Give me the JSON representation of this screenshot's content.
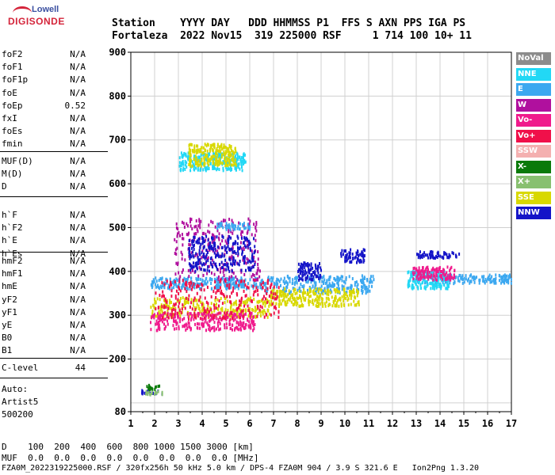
{
  "logo": {
    "top": "Lowell",
    "bottom": "DIGISONDE"
  },
  "header": {
    "line1": "Station    YYYY DAY   DDD HHMMSS P1  FFS S AXN PPS IGA PS",
    "line2": "Fortaleza  2022 Nov15  319 225000 RSF     1 714 100 10+ 11"
  },
  "params_groups": [
    [
      {
        "name": "foF2",
        "value": "N/A"
      },
      {
        "name": "foF1",
        "value": "N/A"
      },
      {
        "name": "foF1p",
        "value": "N/A"
      },
      {
        "name": "foE",
        "value": "N/A"
      },
      {
        "name": "foEp",
        "value": "0.52"
      },
      {
        "name": "fxI",
        "value": "N/A"
      },
      {
        "name": "foEs",
        "value": "N/A"
      },
      {
        "name": "fmin",
        "value": "N/A"
      }
    ],
    [
      {
        "name": "MUF(D)",
        "value": "N/A"
      },
      {
        "name": "M(D)",
        "value": "N/A"
      },
      {
        "name": "D",
        "value": "N/A"
      }
    ],
    [
      {
        "name": "h`F",
        "value": "N/A"
      },
      {
        "name": "h`F2",
        "value": "N/A"
      },
      {
        "name": "h`E",
        "value": "N/A"
      },
      {
        "name": "h`Es",
        "value": "N/A"
      }
    ],
    [
      {
        "name": "hmF2",
        "value": "N/A"
      },
      {
        "name": "hmF1",
        "value": "N/A"
      },
      {
        "name": "hmE",
        "value": "N/A"
      },
      {
        "name": "yF2",
        "value": "N/A"
      },
      {
        "name": "yF1",
        "value": "N/A"
      },
      {
        "name": "yE",
        "value": "N/A"
      },
      {
        "name": "B0",
        "value": "N/A"
      },
      {
        "name": "B1",
        "value": "N/A"
      }
    ],
    [
      {
        "name": "C-level",
        "value": "44"
      }
    ]
  ],
  "auto": {
    "label": "Auto:",
    "program": "Artist5",
    "version": "500200"
  },
  "legend": [
    {
      "label": "NoVal",
      "color": "#8c8c8c"
    },
    {
      "label": "NNE",
      "color": "#22d8f5"
    },
    {
      "label": "E",
      "color": "#3ca8f0"
    },
    {
      "label": "W",
      "color": "#b0109e"
    },
    {
      "label": "Vo-",
      "color": "#f01a8c"
    },
    {
      "label": "Vo+",
      "color": "#f0104a"
    },
    {
      "label": "SSW",
      "color": "#f4b0b0"
    },
    {
      "label": "X-",
      "color": "#0a7a0a"
    },
    {
      "label": "X+",
      "color": "#88c070"
    },
    {
      "label": "SSE",
      "color": "#d8d800"
    },
    {
      "label": "NNW",
      "color": "#1414c8"
    }
  ],
  "footer": {
    "d_row": "D    100  200  400  600  800 1000 1500 3000 [km]",
    "muf_row": "MUF  0.0  0.0  0.0  0.0  0.0  0.0  0.0  0.0 [MHz]",
    "file_row": "FZA0M_2022319225000.RSF / 320fx256h 50 kHz 5.0 km / DPS-4 FZA0M 904 / 3.9 S 321.6 E   Ion2Png 1.3.20"
  },
  "chart_data": {
    "type": "scatter",
    "title": "",
    "xlabel": "",
    "ylabel": "",
    "xlim": [
      1,
      17
    ],
    "ylim": [
      80,
      900
    ],
    "x_ticks": [
      1,
      2,
      3,
      4,
      5,
      6,
      7,
      8,
      9,
      10,
      11,
      12,
      13,
      14,
      15,
      16,
      17
    ],
    "y_ticks": [
      80,
      200,
      300,
      400,
      500,
      600,
      700,
      800,
      900
    ],
    "grid": true,
    "legend_position": "right",
    "clusters": [
      {
        "series": "E",
        "x_range": [
          1.8,
          6.6
        ],
        "y_range": [
          360,
          385
        ]
      },
      {
        "series": "E",
        "x_range": [
          6.6,
          11.2
        ],
        "y_range": [
          350,
          390
        ]
      },
      {
        "series": "SSE",
        "x_range": [
          1.8,
          6.8
        ],
        "y_range": [
          295,
          340
        ]
      },
      {
        "series": "SSE",
        "x_range": [
          6.8,
          10.6
        ],
        "y_range": [
          320,
          360
        ]
      },
      {
        "series": "Vo-",
        "x_range": [
          1.8,
          6.2
        ],
        "y_range": [
          265,
          305
        ]
      },
      {
        "series": "W",
        "x_range": [
          2.8,
          6.4
        ],
        "y_range": [
          380,
          520
        ]
      },
      {
        "series": "Vo+",
        "x_range": [
          2.0,
          7.2
        ],
        "y_range": [
          290,
          380
        ]
      },
      {
        "series": "NNW",
        "x_range": [
          3.4,
          6.2
        ],
        "y_range": [
          400,
          480
        ]
      },
      {
        "series": "NNW",
        "x_range": [
          9.8,
          10.8
        ],
        "y_range": [
          420,
          450
        ]
      },
      {
        "series": "NNW",
        "x_range": [
          8.0,
          9.0
        ],
        "y_range": [
          380,
          420
        ]
      },
      {
        "series": "NNE",
        "x_range": [
          3.0,
          5.8
        ],
        "y_range": [
          630,
          670
        ]
      },
      {
        "series": "SSE",
        "x_range": [
          3.4,
          5.4
        ],
        "y_range": [
          640,
          690
        ]
      },
      {
        "series": "E",
        "x_range": [
          4.6,
          6.0
        ],
        "y_range": [
          495,
          510
        ]
      },
      {
        "series": "NNW",
        "x_range": [
          1.4,
          2.3
        ],
        "y_range": [
          120,
          128
        ]
      },
      {
        "series": "X+",
        "x_range": [
          1.6,
          2.3
        ],
        "y_range": [
          118,
          126
        ]
      },
      {
        "series": "E",
        "x_range": [
          13.0,
          17.0
        ],
        "y_range": [
          372,
          392
        ]
      },
      {
        "series": "NNE",
        "x_range": [
          12.6,
          14.4
        ],
        "y_range": [
          360,
          400
        ]
      },
      {
        "series": "Vo-",
        "x_range": [
          12.8,
          14.6
        ],
        "y_range": [
          380,
          410
        ]
      },
      {
        "series": "NNW",
        "x_range": [
          13.0,
          14.8
        ],
        "y_range": [
          430,
          445
        ]
      },
      {
        "series": "X-",
        "x_range": [
          1.6,
          2.2
        ],
        "y_range": [
          130,
          140
        ]
      }
    ]
  }
}
